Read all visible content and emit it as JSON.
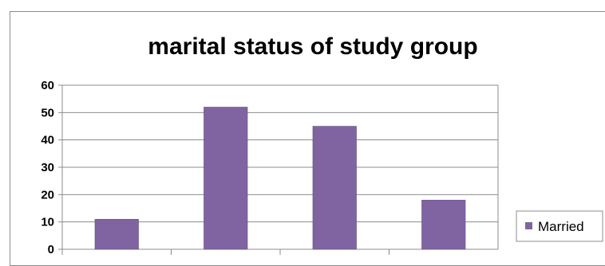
{
  "chart_data": {
    "type": "bar",
    "title": "marital status of study group",
    "categories": [
      "",
      "",
      "",
      ""
    ],
    "series": [
      {
        "name": "Married",
        "values": [
          11,
          52,
          45,
          18
        ]
      }
    ],
    "ylim": [
      0,
      60
    ],
    "yticks": [
      0,
      10,
      20,
      30,
      40,
      50,
      60
    ],
    "grid": true,
    "legend": "right",
    "colors": {
      "bar": "#8064a2",
      "bar_edge": "#5c4a7a",
      "grid": "#8c8c8c",
      "axis": "#8c8c8c"
    }
  }
}
